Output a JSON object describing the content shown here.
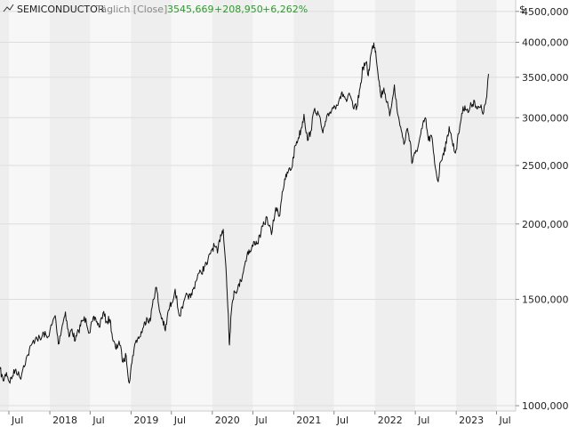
{
  "header": {
    "symbol": "SEMICONDUCTOR",
    "frequency": "Täglich [Close]",
    "last_value": "3545,669",
    "change": "+208,950",
    "change_pct": "+6,262%"
  },
  "colors": {
    "band_dark": "#eeeeee",
    "band_light": "#f7f7f7",
    "line": "#111111",
    "positive": "#2a9d2a",
    "muted": "#888888",
    "gridline": "#dddddd"
  },
  "chart_data": {
    "type": "line",
    "title": "",
    "xlabel": "",
    "ylabel": "",
    "y_unit_label": "$",
    "y_scale": "log",
    "ylim": [
      980,
      4700
    ],
    "xlim": [
      "2017-05-22",
      "2023-09-25"
    ],
    "y_ticks": [
      {
        "value": 1000,
        "label": "1000,000"
      },
      {
        "value": 1500,
        "label": "1500,000"
      },
      {
        "value": 2000,
        "label": "2000,000"
      },
      {
        "value": 2500,
        "label": "2500,000"
      },
      {
        "value": 3000,
        "label": "3000,000"
      },
      {
        "value": 3500,
        "label": "3500,000"
      },
      {
        "value": 4000,
        "label": "4000,000"
      },
      {
        "value": 4500,
        "label": "4500,000"
      }
    ],
    "x_ticks": [
      {
        "date": "2017-07-01",
        "label": "Jul"
      },
      {
        "date": "2018-01-01",
        "label": "2018"
      },
      {
        "date": "2018-07-01",
        "label": "Jul"
      },
      {
        "date": "2019-01-01",
        "label": "2019"
      },
      {
        "date": "2019-07-01",
        "label": "Jul"
      },
      {
        "date": "2020-01-01",
        "label": "2020"
      },
      {
        "date": "2020-07-01",
        "label": "Jul"
      },
      {
        "date": "2021-01-01",
        "label": "2021"
      },
      {
        "date": "2021-07-01",
        "label": "Jul"
      },
      {
        "date": "2022-01-01",
        "label": "2022"
      },
      {
        "date": "2022-07-01",
        "label": "Jul"
      },
      {
        "date": "2023-01-01",
        "label": "2023"
      },
      {
        "date": "2023-07-01",
        "label": "Jul"
      }
    ],
    "series": [
      {
        "points": [
          [
            "2017-05-22",
            1150
          ],
          [
            "2017-06-05",
            1100
          ],
          [
            "2017-06-20",
            1135
          ],
          [
            "2017-07-03",
            1095
          ],
          [
            "2017-07-17",
            1120
          ],
          [
            "2017-08-01",
            1150
          ],
          [
            "2017-08-21",
            1110
          ],
          [
            "2017-09-05",
            1165
          ],
          [
            "2017-09-25",
            1215
          ],
          [
            "2017-10-10",
            1260
          ],
          [
            "2017-11-01",
            1300
          ],
          [
            "2017-11-20",
            1285
          ],
          [
            "2017-12-04",
            1320
          ],
          [
            "2017-12-20",
            1295
          ],
          [
            "2018-01-10",
            1360
          ],
          [
            "2018-01-25",
            1410
          ],
          [
            "2018-02-08",
            1265
          ],
          [
            "2018-02-26",
            1360
          ],
          [
            "2018-03-12",
            1430
          ],
          [
            "2018-03-28",
            1300
          ],
          [
            "2018-04-10",
            1340
          ],
          [
            "2018-04-25",
            1280
          ],
          [
            "2018-05-10",
            1330
          ],
          [
            "2018-05-25",
            1380
          ],
          [
            "2018-06-12",
            1395
          ],
          [
            "2018-06-28",
            1320
          ],
          [
            "2018-07-12",
            1380
          ],
          [
            "2018-07-26",
            1395
          ],
          [
            "2018-08-10",
            1350
          ],
          [
            "2018-08-28",
            1425
          ],
          [
            "2018-09-12",
            1380
          ],
          [
            "2018-09-28",
            1390
          ],
          [
            "2018-10-12",
            1280
          ],
          [
            "2018-10-26",
            1240
          ],
          [
            "2018-11-08",
            1280
          ],
          [
            "2018-11-26",
            1180
          ],
          [
            "2018-12-10",
            1210
          ],
          [
            "2018-12-24",
            1090
          ],
          [
            "2019-01-08",
            1210
          ],
          [
            "2019-01-24",
            1285
          ],
          [
            "2019-02-08",
            1300
          ],
          [
            "2019-02-26",
            1350
          ],
          [
            "2019-03-12",
            1400
          ],
          [
            "2019-03-28",
            1380
          ],
          [
            "2019-04-10",
            1500
          ],
          [
            "2019-04-25",
            1570
          ],
          [
            "2019-05-08",
            1440
          ],
          [
            "2019-05-24",
            1380
          ],
          [
            "2019-06-04",
            1330
          ],
          [
            "2019-06-18",
            1440
          ],
          [
            "2019-07-02",
            1480
          ],
          [
            "2019-07-18",
            1560
          ],
          [
            "2019-08-05",
            1410
          ],
          [
            "2019-08-21",
            1450
          ],
          [
            "2019-09-10",
            1530
          ],
          [
            "2019-09-26",
            1510
          ],
          [
            "2019-10-10",
            1570
          ],
          [
            "2019-10-28",
            1650
          ],
          [
            "2019-11-12",
            1660
          ],
          [
            "2019-11-26",
            1700
          ],
          [
            "2019-12-10",
            1720
          ],
          [
            "2019-12-27",
            1810
          ],
          [
            "2020-01-10",
            1840
          ],
          [
            "2020-01-24",
            1790
          ],
          [
            "2020-02-07",
            1920
          ],
          [
            "2020-02-19",
            1960
          ],
          [
            "2020-03-02",
            1700
          ],
          [
            "2020-03-09",
            1500
          ],
          [
            "2020-03-13",
            1420
          ],
          [
            "2020-03-18",
            1260
          ],
          [
            "2020-03-24",
            1400
          ],
          [
            "2020-04-08",
            1550
          ],
          [
            "2020-04-24",
            1560
          ],
          [
            "2020-05-08",
            1610
          ],
          [
            "2020-05-22",
            1690
          ],
          [
            "2020-06-08",
            1800
          ],
          [
            "2020-06-22",
            1800
          ],
          [
            "2020-07-08",
            1870
          ],
          [
            "2020-07-22",
            1860
          ],
          [
            "2020-08-07",
            1940
          ],
          [
            "2020-08-21",
            2000
          ],
          [
            "2020-09-03",
            2050
          ],
          [
            "2020-09-23",
            1920
          ],
          [
            "2020-10-12",
            2130
          ],
          [
            "2020-10-28",
            2060
          ],
          [
            "2020-11-10",
            2260
          ],
          [
            "2020-11-24",
            2370
          ],
          [
            "2020-12-08",
            2450
          ],
          [
            "2020-12-22",
            2470
          ],
          [
            "2021-01-08",
            2700
          ],
          [
            "2021-01-22",
            2780
          ],
          [
            "2021-02-05",
            2890
          ],
          [
            "2021-02-16",
            3040
          ],
          [
            "2021-03-04",
            2750
          ],
          [
            "2021-03-18",
            2850
          ],
          [
            "2021-04-05",
            3110
          ],
          [
            "2021-04-22",
            3040
          ],
          [
            "2021-05-12",
            2830
          ],
          [
            "2021-05-26",
            2960
          ],
          [
            "2021-06-10",
            3050
          ],
          [
            "2021-06-25",
            3120
          ],
          [
            "2021-07-12",
            3150
          ],
          [
            "2021-07-28",
            3250
          ],
          [
            "2021-08-12",
            3280
          ],
          [
            "2021-08-26",
            3190
          ],
          [
            "2021-09-10",
            3270
          ],
          [
            "2021-09-28",
            3100
          ],
          [
            "2021-10-12",
            3130
          ],
          [
            "2021-10-26",
            3360
          ],
          [
            "2021-11-08",
            3640
          ],
          [
            "2021-11-22",
            3700
          ],
          [
            "2021-12-02",
            3520
          ],
          [
            "2021-12-13",
            3810
          ],
          [
            "2021-12-27",
            3990
          ],
          [
            "2022-01-04",
            3870
          ],
          [
            "2022-01-20",
            3440
          ],
          [
            "2022-01-27",
            3250
          ],
          [
            "2022-02-10",
            3360
          ],
          [
            "2022-02-24",
            3180
          ],
          [
            "2022-03-08",
            3020
          ],
          [
            "2022-03-29",
            3400
          ],
          [
            "2022-04-12",
            3050
          ],
          [
            "2022-04-26",
            2900
          ],
          [
            "2022-05-11",
            2710
          ],
          [
            "2022-05-27",
            2880
          ],
          [
            "2022-06-10",
            2720
          ],
          [
            "2022-06-16",
            2520
          ],
          [
            "2022-07-01",
            2620
          ],
          [
            "2022-07-15",
            2700
          ],
          [
            "2022-08-01",
            2880
          ],
          [
            "2022-08-15",
            3000
          ],
          [
            "2022-08-29",
            2750
          ],
          [
            "2022-09-12",
            2800
          ],
          [
            "2022-09-26",
            2520
          ],
          [
            "2022-10-12",
            2350
          ],
          [
            "2022-10-21",
            2530
          ],
          [
            "2022-11-04",
            2620
          ],
          [
            "2022-11-18",
            2720
          ],
          [
            "2022-11-30",
            2900
          ],
          [
            "2022-12-14",
            2740
          ],
          [
            "2022-12-28",
            2620
          ],
          [
            "2023-01-12",
            2820
          ],
          [
            "2023-01-26",
            3050
          ],
          [
            "2023-02-09",
            3140
          ],
          [
            "2023-02-23",
            3060
          ],
          [
            "2023-03-10",
            3150
          ],
          [
            "2023-03-24",
            3200
          ],
          [
            "2023-04-06",
            3100
          ],
          [
            "2023-04-20",
            3120
          ],
          [
            "2023-05-04",
            3060
          ],
          [
            "2023-05-18",
            3250
          ],
          [
            "2023-05-26",
            3545.669
          ]
        ]
      }
    ]
  }
}
